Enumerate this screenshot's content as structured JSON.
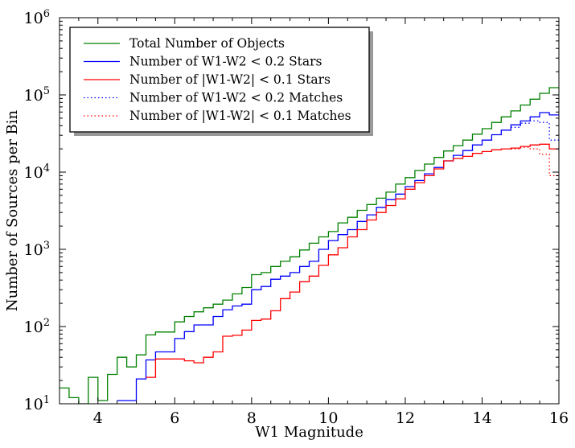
{
  "chart_data": {
    "type": "line",
    "xlabel": "W1 Magnitude",
    "ylabel": "Number of Sources per Bin",
    "xlim": [
      3,
      16
    ],
    "ylim": [
      10,
      1000000
    ],
    "yscale": "log",
    "grid": false,
    "legend_position": "top-left",
    "x_ticks": [
      {
        "value": 4,
        "label": "4"
      },
      {
        "value": 6,
        "label": "6"
      },
      {
        "value": 8,
        "label": "8"
      },
      {
        "value": 10,
        "label": "10"
      },
      {
        "value": 12,
        "label": "12"
      },
      {
        "value": 14,
        "label": "14"
      },
      {
        "value": 16,
        "label": "16"
      }
    ],
    "y_ticks": [
      {
        "value": 10,
        "base": "10",
        "exp": "1"
      },
      {
        "value": 100,
        "base": "10",
        "exp": "2"
      },
      {
        "value": 1000,
        "base": "10",
        "exp": "3"
      },
      {
        "value": 10000,
        "base": "10",
        "exp": "4"
      },
      {
        "value": 100000,
        "base": "10",
        "exp": "5"
      },
      {
        "value": 1000000,
        "base": "10",
        "exp": "6"
      }
    ],
    "bin_width": 0.25,
    "series": [
      {
        "name": "Total Number of Objects",
        "color": "#008000",
        "style": "solid",
        "x": [
          3.0,
          3.25,
          3.5,
          3.75,
          4.0,
          4.25,
          4.5,
          4.75,
          5.0,
          5.25,
          5.5,
          5.75,
          6.0,
          6.25,
          6.5,
          6.75,
          7.0,
          7.25,
          7.5,
          7.75,
          8.0,
          8.25,
          8.5,
          8.75,
          9.0,
          9.25,
          9.5,
          9.75,
          10.0,
          10.25,
          10.5,
          10.75,
          11.0,
          11.25,
          11.5,
          11.75,
          12.0,
          12.25,
          12.5,
          12.75,
          13.0,
          13.25,
          13.5,
          13.75,
          14.0,
          14.25,
          14.5,
          14.75,
          15.0,
          15.25,
          15.5,
          15.75
        ],
        "y": [
          16,
          12,
          10,
          22,
          11,
          24,
          40,
          30,
          43,
          78,
          85,
          85,
          115,
          135,
          155,
          175,
          195,
          220,
          265,
          320,
          470,
          500,
          600,
          700,
          800,
          980,
          1200,
          1450,
          1700,
          2200,
          2600,
          3200,
          3800,
          4600,
          5500,
          7000,
          8500,
          10500,
          12700,
          15500,
          18800,
          22000,
          26000,
          31000,
          36500,
          44000,
          52000,
          62000,
          74000,
          88000,
          105000,
          124000
        ]
      },
      {
        "name": "Number of  W1-W2  < 0.2 Stars",
        "color": "#0000ff",
        "style": "solid",
        "x": [
          4.5,
          4.75,
          5.0,
          5.25,
          5.5,
          5.75,
          6.0,
          6.25,
          6.5,
          6.75,
          7.0,
          7.25,
          7.5,
          7.75,
          8.0,
          8.25,
          8.5,
          8.75,
          9.0,
          9.25,
          9.5,
          9.75,
          10.0,
          10.25,
          10.5,
          10.75,
          11.0,
          11.25,
          11.5,
          11.75,
          12.0,
          12.25,
          12.5,
          12.75,
          13.0,
          13.25,
          13.5,
          13.75,
          14.0,
          14.25,
          14.5,
          14.75,
          15.0,
          15.25,
          15.5,
          15.75
        ],
        "y": [
          11,
          11,
          21,
          37,
          47,
          47,
          70,
          86,
          105,
          105,
          135,
          165,
          185,
          195,
          300,
          330,
          410,
          450,
          500,
          600,
          700,
          1000,
          1300,
          1550,
          1800,
          2300,
          2800,
          3500,
          4400,
          5200,
          6500,
          7800,
          9500,
          11500,
          14000,
          16500,
          19000,
          22500,
          26000,
          30500,
          35000,
          41000,
          46000,
          52000,
          59000,
          55000
        ]
      },
      {
        "name": "Number of |W1-W2| < 0.1 Stars",
        "color": "#ff0000",
        "style": "solid",
        "x": [
          5.25,
          5.5,
          5.75,
          6.0,
          6.25,
          6.5,
          6.75,
          7.0,
          7.25,
          7.5,
          7.75,
          8.0,
          8.25,
          8.5,
          8.75,
          9.0,
          9.25,
          9.5,
          9.75,
          10.0,
          10.25,
          10.5,
          10.75,
          11.0,
          11.25,
          11.5,
          11.75,
          12.0,
          12.25,
          12.5,
          12.75,
          13.0,
          13.25,
          13.5,
          13.75,
          14.0,
          14.25,
          14.5,
          14.75,
          15.0,
          15.25,
          15.5,
          15.75
        ],
        "y": [
          22,
          38,
          38,
          38,
          36,
          34,
          40,
          47,
          75,
          77,
          90,
          120,
          125,
          160,
          230,
          280,
          380,
          450,
          620,
          850,
          1050,
          1450,
          1800,
          2400,
          3000,
          3700,
          4500,
          6000,
          7300,
          9000,
          11000,
          14000,
          15000,
          16000,
          17500,
          18500,
          19500,
          20000,
          20500,
          21500,
          22500,
          23000,
          20000
        ]
      },
      {
        "name": "Number of  W1-W2  < 0.2 Matches",
        "color": "#0000ff",
        "style": "dotted",
        "x": [
          14.75,
          15.0,
          15.25,
          15.5,
          15.75
        ],
        "y": [
          38000,
          43000,
          46000,
          44000,
          26000
        ]
      },
      {
        "name": "Number of |W1-W2| < 0.1 Matches",
        "color": "#ff0000",
        "style": "dotted",
        "x": [
          14.75,
          15.0,
          15.25,
          15.5,
          15.75
        ],
        "y": [
          20000,
          21000,
          20000,
          17000,
          9000
        ]
      }
    ]
  }
}
